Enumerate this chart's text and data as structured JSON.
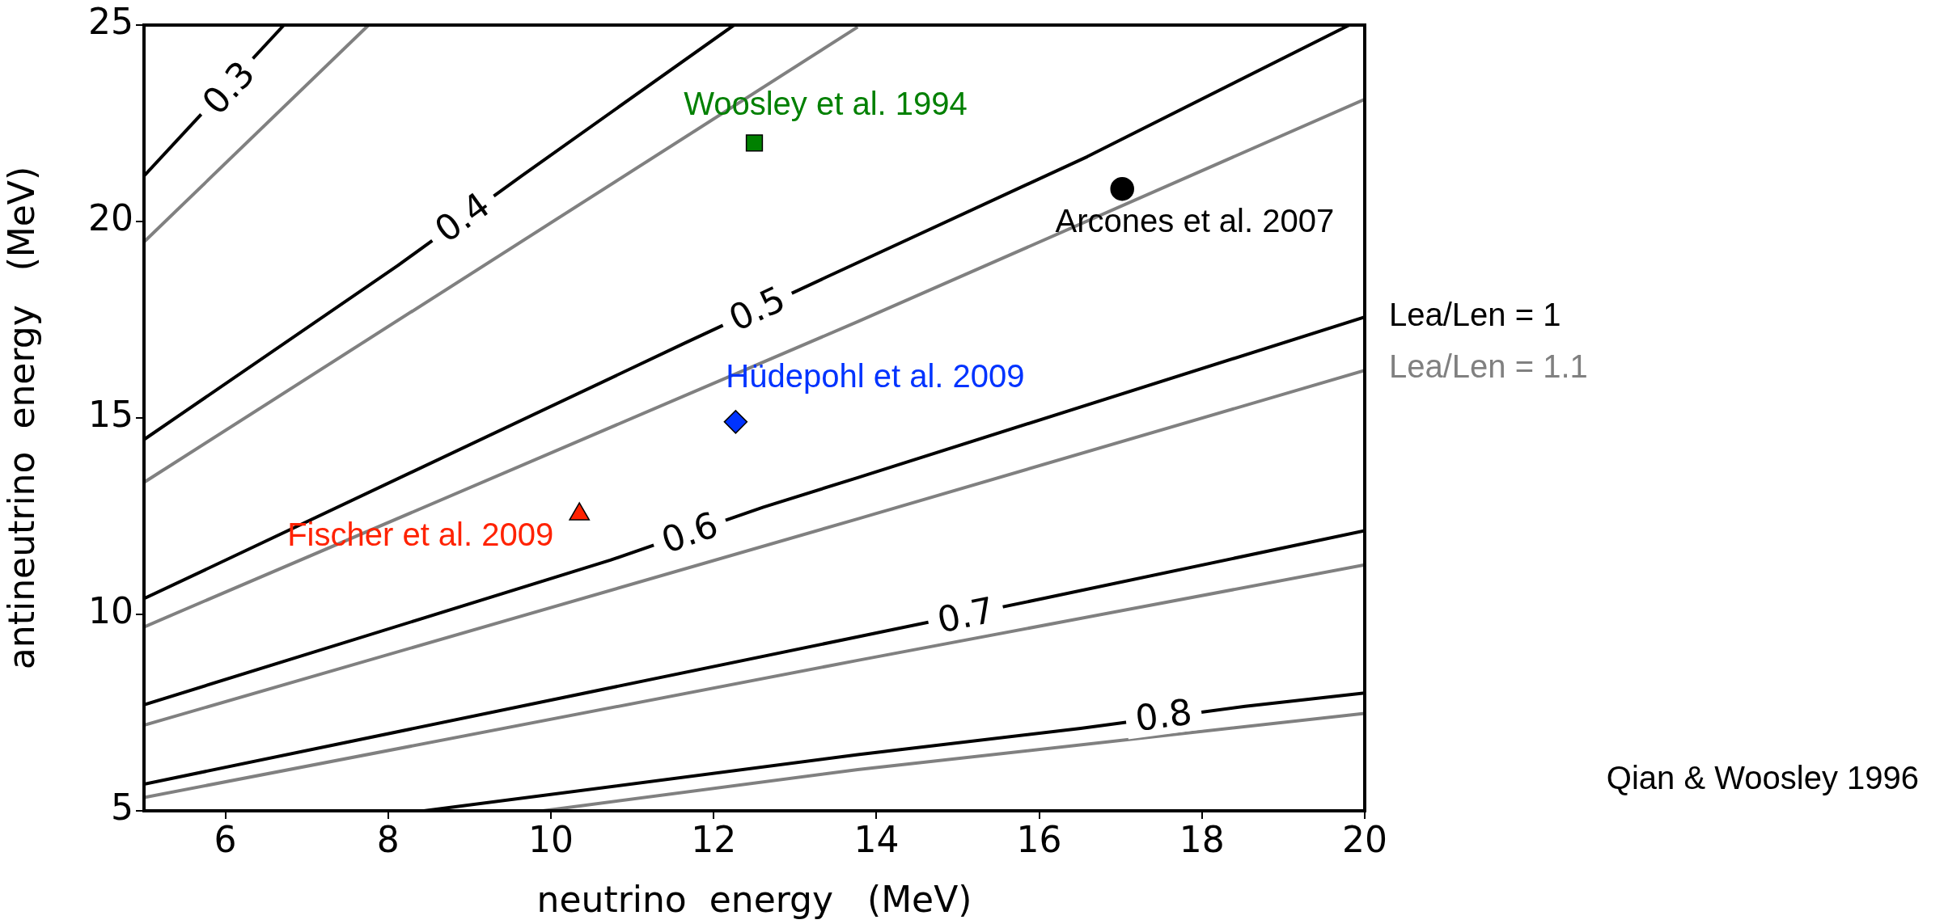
{
  "chart_data": {
    "type": "line",
    "xlabel": "neutrino  energy   (MeV)",
    "ylabel": "antineutrino  energy   (MeV)",
    "xlim": [
      5,
      20
    ],
    "ylim": [
      5,
      25
    ],
    "xticks": [
      6,
      8,
      10,
      12,
      14,
      16,
      18,
      20
    ],
    "yticks": [
      5,
      10,
      15,
      20,
      25
    ],
    "legend": "right",
    "series": [
      {
        "color": "#000000",
        "x": [
          5,
          6.72
        ],
        "values": [
          21.16,
          25
        ]
      },
      {
        "color": "#000000",
        "x": [
          5,
          8.12,
          9.64,
          12.25
        ],
        "values": [
          14.45,
          18.88,
          21.16,
          25
        ]
      },
      {
        "color": "#000000",
        "x": [
          5,
          11.64,
          13.38,
          16.59,
          19.81
        ],
        "values": [
          10.4,
          16.9,
          18.58,
          21.65,
          25
        ]
      },
      {
        "name": "Lea/Len = 1",
        "color": "#000000",
        "x": [
          5,
          10.73,
          12.61,
          13.77,
          20
        ],
        "values": [
          7.7,
          11.38,
          12.73,
          13.48,
          17.57
        ]
      },
      {
        "color": "#000000",
        "x": [
          5,
          13.77,
          16.04,
          20
        ],
        "values": [
          5.68,
          9.43,
          10.4,
          12.13
        ]
      },
      {
        "color": "#000000",
        "x": [
          8.44,
          13.77,
          16.51,
          18.53,
          20
        ],
        "values": [
          5,
          6.43,
          7.1,
          7.66,
          8.0
        ]
      },
      {
        "color": "#808080",
        "x": [
          5,
          7.76
        ],
        "values": [
          19.48,
          25
        ]
      },
      {
        "color": "#808080",
        "x": [
          5,
          13.77
        ],
        "values": [
          13.36,
          24.95
        ]
      },
      {
        "color": "#808080",
        "x": [
          5,
          13.77,
          20
        ],
        "values": [
          9.68,
          17.45,
          23.11
        ]
      },
      {
        "name": "Lea/Len = 1.1",
        "color": "#808080",
        "x": [
          5,
          13.77,
          20
        ],
        "values": [
          7.18,
          12.43,
          16.21
        ]
      },
      {
        "color": "#808080",
        "x": [
          5,
          13.77,
          20
        ],
        "values": [
          5.34,
          8.83,
          11.26
        ]
      },
      {
        "color": "#808080",
        "x": [
          9.9,
          13.77,
          20
        ],
        "values": [
          5,
          6.05,
          7.48
        ]
      },
      {
        "type": "scatter",
        "name": "Woosley et al. 1994",
        "color": "#008000",
        "marker": "square",
        "x": [
          12.5
        ],
        "values": [
          22.0
        ]
      },
      {
        "type": "scatter",
        "name": "Hüdepohl et al. 2009",
        "color": "#0033ff",
        "marker": "diamond",
        "x": [
          12.27
        ],
        "values": [
          14.9
        ]
      },
      {
        "type": "scatter",
        "name": "Arcones et al. 2007",
        "color": "#000000",
        "marker": "circle",
        "x": [
          17.02
        ],
        "values": [
          20.83
        ]
      },
      {
        "type": "scatter",
        "name": "Fischer et al. 2009",
        "color": "#ff2200",
        "marker": "triangle",
        "x": [
          10.35
        ],
        "values": [
          12.55
        ]
      }
    ],
    "annotations": [
      {
        "text": "0.3",
        "x": 6.05,
        "y": 23.38
      },
      {
        "text": "0.4",
        "x": 8.92,
        "y": 20.08
      },
      {
        "text": "0.5",
        "x": 12.54,
        "y": 17.75
      },
      {
        "text": "0.6",
        "x": 11.71,
        "y": 12.05
      },
      {
        "text": "0.7",
        "x": 15.1,
        "y": 9.95
      },
      {
        "text": "0.8",
        "x": 17.53,
        "y": 7.4
      },
      "Qian & Woosley 1996"
    ]
  }
}
